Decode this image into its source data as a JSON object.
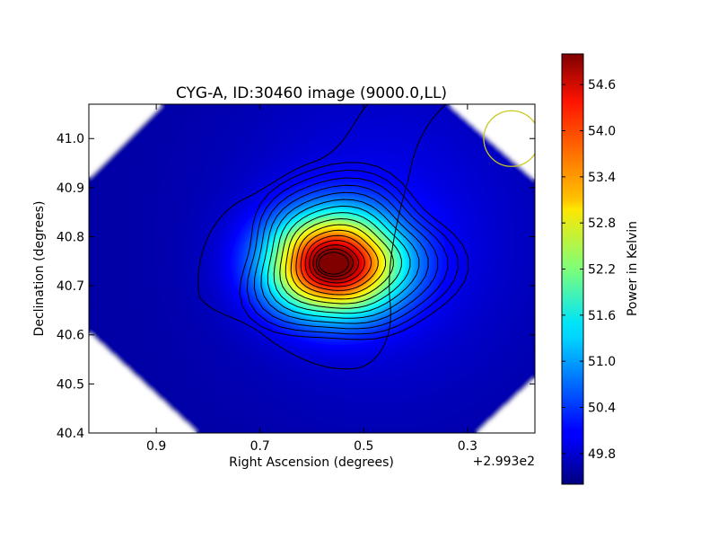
{
  "chart_data": {
    "type": "heatmap",
    "title": "CYG-A, ID:30460 image (9000.0,LL)",
    "xlabel": "Right Ascension (degrees)",
    "ylabel": "Declination (degrees)",
    "x_offset_label": "+2.993e2",
    "x_reversed": true,
    "xlim": [
      1.03,
      0.17
    ],
    "ylim": [
      40.4,
      41.07
    ],
    "x_ticks": [
      0.9,
      0.7,
      0.5,
      0.3
    ],
    "x_tick_labels": [
      "0.9",
      "0.7",
      "0.5",
      "0.3"
    ],
    "y_ticks": [
      40.4,
      40.5,
      40.6,
      40.7,
      40.8,
      40.9,
      41.0
    ],
    "y_tick_labels": [
      "40.4",
      "40.5",
      "40.6",
      "40.7",
      "40.8",
      "40.9",
      "41.0"
    ],
    "colormap": "jet",
    "colorbar": {
      "label": "Power in Kelvin",
      "min": 49.4,
      "max": 55.0,
      "ticks": [
        49.8,
        50.4,
        51.0,
        51.6,
        52.2,
        52.8,
        53.4,
        54.0,
        54.6
      ],
      "tick_labels": [
        "49.8",
        "50.4",
        "51.0",
        "51.6",
        "52.2",
        "52.8",
        "53.4",
        "54.0",
        "54.6"
      ]
    },
    "peak": {
      "x": 0.56,
      "y": 40.745,
      "value": 55.0
    },
    "background_value": 49.6,
    "contour_count": 16,
    "beam_marker": {
      "x": 0.215,
      "y": 41.0,
      "color": "#c8c820"
    },
    "grid": false
  }
}
